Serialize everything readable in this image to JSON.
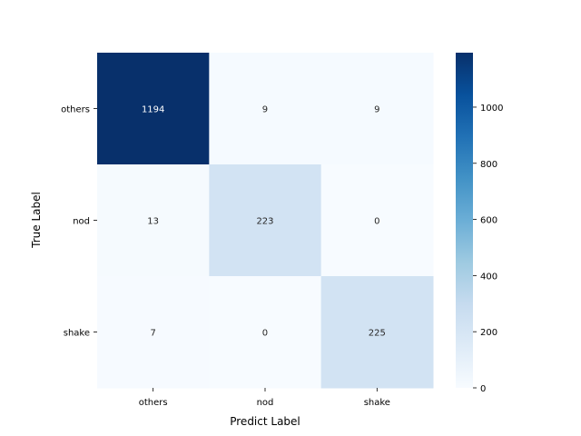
{
  "chart_data": {
    "type": "heatmap",
    "title": "",
    "xlabel": "Predict Label",
    "ylabel": "True Label",
    "x_categories": [
      "others",
      "nod",
      "shake"
    ],
    "y_categories": [
      "others",
      "nod",
      "shake"
    ],
    "matrix": [
      [
        1194,
        9,
        9
      ],
      [
        13,
        223,
        0
      ],
      [
        7,
        0,
        225
      ]
    ],
    "colormap": "Blues",
    "color_range": [
      0,
      1194
    ],
    "colorbar_ticks": [
      0,
      200,
      400,
      600,
      800,
      1000
    ],
    "annotations": true
  }
}
